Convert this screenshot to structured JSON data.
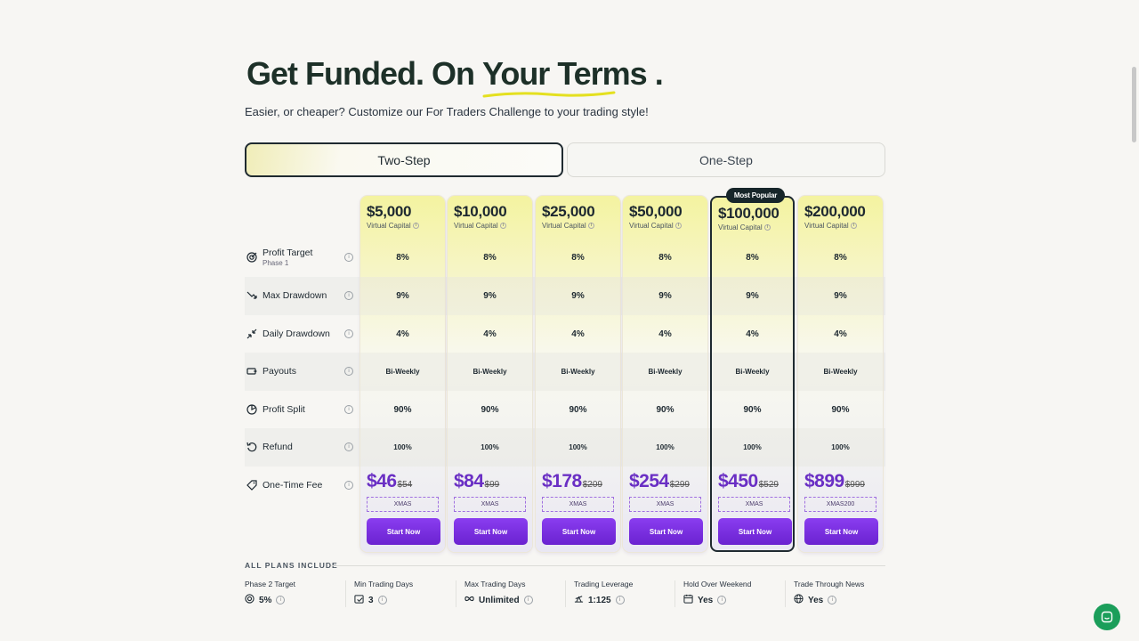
{
  "hero": {
    "title_part1": "Get Funded. On ",
    "title_accent": "Your Terms",
    "title_end": " ."
  },
  "subtitle": "Easier, or cheaper? Customize our For Traders Challenge to your trading style!",
  "toggle": {
    "two_step": "Two-Step",
    "one_step": "One-Step"
  },
  "rows": [
    {
      "label": "Profit Target",
      "sub": "Phase 1",
      "icon": "target-icon"
    },
    {
      "label": "Max Drawdown",
      "sub": "",
      "icon": "trend-down-icon"
    },
    {
      "label": "Daily Drawdown",
      "sub": "",
      "icon": "arrows-in-icon"
    },
    {
      "label": "Payouts",
      "sub": "",
      "icon": "payout-icon"
    },
    {
      "label": "Profit Split",
      "sub": "",
      "icon": "pie-icon"
    },
    {
      "label": "Refund",
      "sub": "",
      "icon": "refund-icon"
    },
    {
      "label": "One-Time Fee",
      "sub": "",
      "icon": "tag-icon"
    }
  ],
  "info_glyph": "i",
  "virtual_capital_label": "Virtual Capital",
  "start_label": "Start Now",
  "popular_badge": "Most Popular",
  "plans": [
    {
      "amount": "$5,000",
      "profit_target": "8%",
      "max_dd": "9%",
      "daily_dd": "4%",
      "payouts": "Bi-Weekly",
      "split": "90%",
      "refund": "100%",
      "price": "$46",
      "was": "$54",
      "code": "XMAS"
    },
    {
      "amount": "$10,000",
      "profit_target": "8%",
      "max_dd": "9%",
      "daily_dd": "4%",
      "payouts": "Bi-Weekly",
      "split": "90%",
      "refund": "100%",
      "price": "$84",
      "was": "$99",
      "code": "XMAS"
    },
    {
      "amount": "$25,000",
      "profit_target": "8%",
      "max_dd": "9%",
      "daily_dd": "4%",
      "payouts": "Bi-Weekly",
      "split": "90%",
      "refund": "100%",
      "price": "$178",
      "was": "$209",
      "code": "XMAS"
    },
    {
      "amount": "$50,000",
      "profit_target": "8%",
      "max_dd": "9%",
      "daily_dd": "4%",
      "payouts": "Bi-Weekly",
      "split": "90%",
      "refund": "100%",
      "price": "$254",
      "was": "$299",
      "code": "XMAS"
    },
    {
      "amount": "$100,000",
      "profit_target": "8%",
      "max_dd": "9%",
      "daily_dd": "4%",
      "payouts": "Bi-Weekly",
      "split": "90%",
      "refund": "100%",
      "price": "$450",
      "was": "$529",
      "code": "XMAS",
      "popular": true
    },
    {
      "amount": "$200,000",
      "profit_target": "8%",
      "max_dd": "9%",
      "daily_dd": "4%",
      "payouts": "Bi-Weekly",
      "split": "90%",
      "refund": "100%",
      "price": "$899",
      "was": "$999",
      "code": "XMAS200"
    }
  ],
  "all_plans": {
    "heading": "ALL PLANS INCLUDE",
    "items": [
      {
        "label": "Phase 2 Target",
        "value": "5%",
        "icon": "target-icon"
      },
      {
        "label": "Min Trading Days",
        "value": "3",
        "icon": "calendar-check-icon"
      },
      {
        "label": "Max Trading Days",
        "value": "Unlimited",
        "icon": "infinity-icon"
      },
      {
        "label": "Trading Leverage",
        "value": "1:125",
        "icon": "leverage-icon"
      },
      {
        "label": "Hold Over Weekend",
        "value": "Yes",
        "icon": "calendar-icon"
      },
      {
        "label": "Trade Through News",
        "value": "Yes",
        "icon": "globe-icon"
      }
    ]
  },
  "colors": {
    "accent_purple": "#6a2fc4",
    "button": "#7b2fe0",
    "chat": "#1b9e5a",
    "dark": "#1d3028"
  }
}
